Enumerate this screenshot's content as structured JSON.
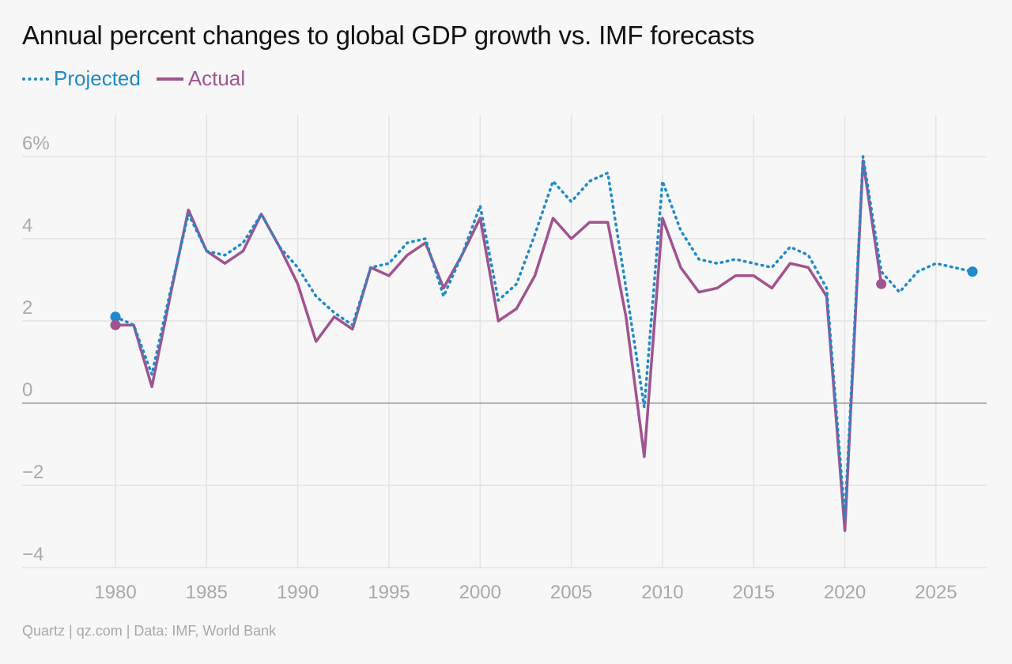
{
  "title": "Annual percent changes to global GDP growth vs. IMF forecasts",
  "source": "Quartz | qz.com | Data: IMF, World Bank",
  "colors": {
    "projected": "#1e8ac9",
    "actual": "#a0538f",
    "grid": "#e4e4e4",
    "zero": "#9e9e9e",
    "tick": "#a9a9a9"
  },
  "chart_data": {
    "type": "line",
    "title": "Annual percent changes to global GDP growth vs. IMF forecasts",
    "xlabel": "",
    "ylabel": "",
    "xlim": [
      1975,
      1978
    ],
    "ylim": [
      -4,
      7
    ],
    "x_ticks": [
      1980,
      1985,
      1990,
      1995,
      2000,
      2005,
      2010,
      2015,
      2020,
      2025
    ],
    "x_tick_labels": [
      "1980",
      "1985",
      "1990",
      "1995",
      "2000",
      "2005",
      "2010",
      "2015",
      "2020",
      "2025"
    ],
    "y_ticks": [
      6,
      4,
      2,
      0,
      -2,
      -4
    ],
    "y_tick_labels": [
      "6%",
      "4",
      "2",
      "0",
      "−2",
      "−4"
    ],
    "grid": true,
    "legend_position": "top-left",
    "series": [
      {
        "name": "Projected",
        "style": "dotted",
        "x": [
          1980,
          1981,
          1982,
          1983,
          1984,
          1985,
          1986,
          1987,
          1988,
          1989,
          1990,
          1991,
          1992,
          1993,
          1994,
          1995,
          1996,
          1997,
          1998,
          1999,
          2000,
          2001,
          2002,
          2003,
          2004,
          2005,
          2006,
          2007,
          2008,
          2009,
          2010,
          2011,
          2012,
          2013,
          2014,
          2015,
          2016,
          2017,
          2018,
          2019,
          2020,
          2021,
          2022,
          2023,
          2024,
          2025,
          2026,
          2027
        ],
        "values": [
          2.1,
          1.9,
          0.7,
          2.7,
          4.6,
          3.7,
          3.6,
          3.9,
          4.6,
          3.8,
          3.3,
          2.6,
          2.2,
          1.9,
          3.3,
          3.4,
          3.9,
          4.0,
          2.6,
          3.6,
          4.8,
          2.5,
          2.9,
          4.1,
          5.4,
          4.9,
          5.4,
          5.6,
          2.8,
          -0.1,
          5.4,
          4.2,
          3.5,
          3.4,
          3.5,
          3.4,
          3.3,
          3.8,
          3.6,
          2.8,
          -2.8,
          6.0,
          3.2,
          2.7,
          3.2,
          3.4,
          3.3,
          3.2
        ]
      },
      {
        "name": "Actual",
        "style": "solid",
        "x": [
          1980,
          1981,
          1982,
          1983,
          1984,
          1985,
          1986,
          1987,
          1988,
          1989,
          1990,
          1991,
          1992,
          1993,
          1994,
          1995,
          1996,
          1997,
          1998,
          1999,
          2000,
          2001,
          2002,
          2003,
          2004,
          2005,
          2006,
          2007,
          2008,
          2009,
          2010,
          2011,
          2012,
          2013,
          2014,
          2015,
          2016,
          2017,
          2018,
          2019,
          2020,
          2021,
          2022
        ],
        "values": [
          1.9,
          1.9,
          0.4,
          2.6,
          4.7,
          3.7,
          3.4,
          3.7,
          4.6,
          3.8,
          2.9,
          1.5,
          2.1,
          1.8,
          3.3,
          3.1,
          3.6,
          3.9,
          2.8,
          3.6,
          4.5,
          2.0,
          2.3,
          3.1,
          4.5,
          4.0,
          4.4,
          4.4,
          2.1,
          -1.3,
          4.5,
          3.3,
          2.7,
          2.8,
          3.1,
          3.1,
          2.8,
          3.4,
          3.3,
          2.6,
          -3.1,
          5.9,
          2.9
        ]
      }
    ]
  }
}
